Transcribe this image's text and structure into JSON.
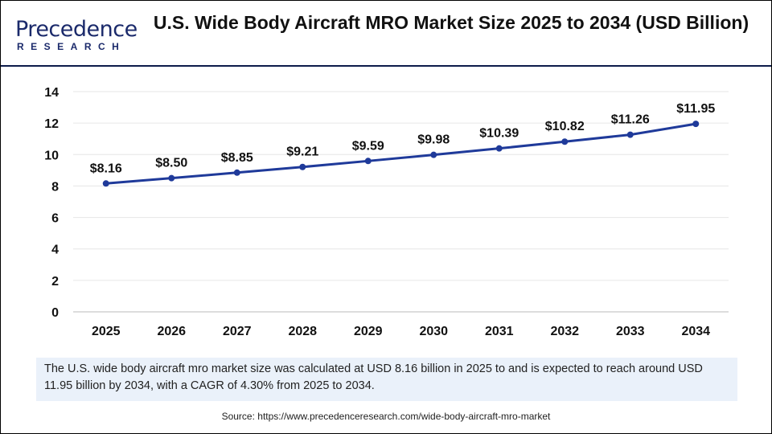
{
  "logo": {
    "line1": "Precedence",
    "line2": "RESEARCH"
  },
  "title": "U.S. Wide Body Aircraft MRO Market Size 2025 to 2034 (USD Billion)",
  "caption": "The U.S. wide body aircraft mro market size was calculated at USD 8.16 billion in 2025 to and is expected to reach around USD 11.95 billion by 2034, with a CAGR of 4.30% from 2025 to 2034.",
  "source": "Source: https://www.precedenceresearch.com/wide-body-aircraft-mro-market",
  "chart_data": {
    "type": "line",
    "categories": [
      "2025",
      "2026",
      "2027",
      "2028",
      "2029",
      "2030",
      "2031",
      "2032",
      "2033",
      "2034"
    ],
    "values": [
      8.16,
      8.5,
      8.85,
      9.21,
      9.59,
      9.98,
      10.39,
      10.82,
      11.26,
      11.95
    ],
    "data_labels": [
      "$8.16",
      "$8.50",
      "$8.85",
      "$9.21",
      "$9.59",
      "$9.98",
      "$10.39",
      "$10.82",
      "$11.26",
      "$11.95"
    ],
    "ylim": [
      0,
      14
    ],
    "yticks": [
      0,
      2,
      4,
      6,
      8,
      10,
      12,
      14
    ],
    "grid": true,
    "line_color": "#1f3a9a"
  }
}
